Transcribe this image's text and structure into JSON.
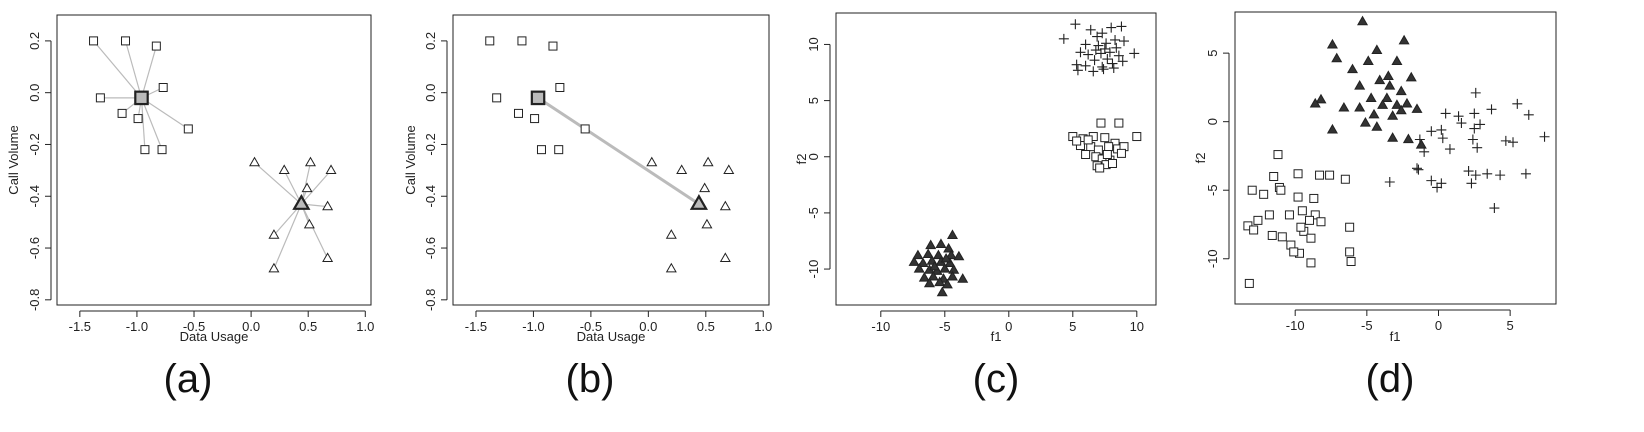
{
  "chart_data": [
    {
      "type": "scatter",
      "panel_label": "(a)",
      "xlabel": "Data Usage",
      "ylabel": "Call Volume",
      "xlim": [
        -1.7,
        1.05
      ],
      "ylim": [
        -0.82,
        0.3
      ],
      "xticks": [
        -1.5,
        -1.0,
        -0.5,
        0.0,
        0.5,
        1.0
      ],
      "xtick_labels": [
        "-1.5",
        "-1.0",
        "-0.5",
        "0.0",
        "0.5",
        "1.0"
      ],
      "yticks": [
        -0.8,
        -0.6,
        -0.4,
        -0.2,
        0.0,
        0.2
      ],
      "ytick_labels": [
        "-0.8",
        "-0.6",
        "-0.4",
        "-0.2",
        "0.0",
        "0.2"
      ],
      "grid": false,
      "series": [
        {
          "marker": "square",
          "points": [
            [
              -1.38,
              0.2
            ],
            [
              -1.1,
              0.2
            ],
            [
              -0.83,
              0.18
            ],
            [
              -1.32,
              -0.02
            ],
            [
              -0.77,
              0.02
            ],
            [
              -1.13,
              -0.08
            ],
            [
              -0.99,
              -0.1
            ],
            [
              -0.55,
              -0.14
            ],
            [
              -0.93,
              -0.22
            ],
            [
              -0.78,
              -0.22
            ]
          ]
        },
        {
          "marker": "triangle",
          "points": [
            [
              0.03,
              -0.27
            ],
            [
              0.29,
              -0.3
            ],
            [
              0.52,
              -0.27
            ],
            [
              0.7,
              -0.3
            ],
            [
              0.49,
              -0.37
            ],
            [
              0.67,
              -0.44
            ],
            [
              0.51,
              -0.51
            ],
            [
              0.2,
              -0.55
            ],
            [
              0.2,
              -0.68
            ],
            [
              0.67,
              -0.64
            ]
          ]
        }
      ],
      "centroids": [
        {
          "marker": "square",
          "x": -0.96,
          "y": -0.02
        },
        {
          "marker": "triangle",
          "x": 0.44,
          "y": -0.43
        }
      ],
      "connectors": "each-point-to-own-centroid"
    },
    {
      "type": "scatter",
      "panel_label": "(b)",
      "xlabel": "Data Usage",
      "ylabel": "Call Volume",
      "xlim": [
        -1.7,
        1.05
      ],
      "ylim": [
        -0.82,
        0.3
      ],
      "xticks": [
        -1.5,
        -1.0,
        -0.5,
        0.0,
        0.5,
        1.0
      ],
      "xtick_labels": [
        "-1.5",
        "-1.0",
        "-0.5",
        "0.0",
        "0.5",
        "1.0"
      ],
      "yticks": [
        -0.8,
        -0.6,
        -0.4,
        -0.2,
        0.0,
        0.2
      ],
      "ytick_labels": [
        "-0.8",
        "-0.6",
        "-0.4",
        "-0.2",
        "0.0",
        "0.2"
      ],
      "grid": false,
      "series": [
        {
          "marker": "square",
          "points": [
            [
              -1.38,
              0.2
            ],
            [
              -1.1,
              0.2
            ],
            [
              -0.83,
              0.18
            ],
            [
              -1.32,
              -0.02
            ],
            [
              -0.77,
              0.02
            ],
            [
              -1.13,
              -0.08
            ],
            [
              -0.99,
              -0.1
            ],
            [
              -0.55,
              -0.14
            ],
            [
              -0.93,
              -0.22
            ],
            [
              -0.78,
              -0.22
            ]
          ]
        },
        {
          "marker": "triangle",
          "points": [
            [
              0.03,
              -0.27
            ],
            [
              0.29,
              -0.3
            ],
            [
              0.52,
              -0.27
            ],
            [
              0.7,
              -0.3
            ],
            [
              0.49,
              -0.37
            ],
            [
              0.67,
              -0.44
            ],
            [
              0.51,
              -0.51
            ],
            [
              0.2,
              -0.55
            ],
            [
              0.2,
              -0.68
            ],
            [
              0.67,
              -0.64
            ]
          ]
        }
      ],
      "centroids": [
        {
          "marker": "square",
          "x": -0.96,
          "y": -0.02
        },
        {
          "marker": "triangle",
          "x": 0.44,
          "y": -0.43
        }
      ],
      "connectors": "centroid-to-centroid"
    },
    {
      "type": "scatter",
      "panel_label": "(c)",
      "xlabel": "f1",
      "ylabel": "f2",
      "xlim": [
        -13.5,
        11.5
      ],
      "ylim": [
        -13.2,
        12.8
      ],
      "xticks": [
        -10,
        -5,
        0,
        5,
        10
      ],
      "xtick_labels": [
        "-10",
        "-5",
        "0",
        "5",
        "10"
      ],
      "yticks": [
        -10,
        -5,
        0,
        5,
        10
      ],
      "ytick_labels": [
        "-10",
        "-5",
        "0",
        "5",
        "10"
      ],
      "grid": false,
      "series": [
        {
          "marker": "plus",
          "points": [
            [
              4.3,
              10.5
            ],
            [
              5.2,
              11.8
            ],
            [
              6.4,
              11.3
            ],
            [
              7.3,
              11.0
            ],
            [
              8.0,
              11.5
            ],
            [
              8.8,
              11.6
            ],
            [
              6.0,
              10.0
            ],
            [
              7.0,
              9.9
            ],
            [
              7.6,
              10.1
            ],
            [
              8.3,
              10.4
            ],
            [
              9.0,
              10.3
            ],
            [
              5.6,
              9.3
            ],
            [
              6.2,
              9.1
            ],
            [
              6.8,
              9.5
            ],
            [
              7.2,
              9.2
            ],
            [
              7.9,
              9.3
            ],
            [
              8.6,
              9.0
            ],
            [
              9.8,
              9.2
            ],
            [
              5.3,
              8.2
            ],
            [
              6.0,
              8.1
            ],
            [
              6.7,
              8.6
            ],
            [
              7.3,
              8.0
            ],
            [
              8.1,
              8.3
            ],
            [
              8.9,
              8.5
            ],
            [
              5.4,
              7.7
            ],
            [
              6.6,
              7.6
            ],
            [
              7.4,
              7.8
            ],
            [
              8.2,
              7.9
            ],
            [
              6.9,
              10.7
            ],
            [
              7.7,
              8.7
            ],
            [
              8.4,
              9.7
            ],
            [
              7.5,
              9.6
            ]
          ]
        },
        {
          "marker": "square",
          "points": [
            [
              7.2,
              3.0
            ],
            [
              8.6,
              3.0
            ],
            [
              5.0,
              1.8
            ],
            [
              5.8,
              1.6
            ],
            [
              6.6,
              1.8
            ],
            [
              7.5,
              1.7
            ],
            [
              8.3,
              1.2
            ],
            [
              10.0,
              1.8
            ],
            [
              5.6,
              1.0
            ],
            [
              6.4,
              0.9
            ],
            [
              7.0,
              0.6
            ],
            [
              7.8,
              0.9
            ],
            [
              8.5,
              0.7
            ],
            [
              9.0,
              0.9
            ],
            [
              6.0,
              0.2
            ],
            [
              6.8,
              0.0
            ],
            [
              7.3,
              -0.2
            ],
            [
              7.9,
              -0.3
            ],
            [
              8.8,
              0.3
            ],
            [
              6.9,
              -0.8
            ],
            [
              7.6,
              -0.7
            ],
            [
              8.1,
              -0.6
            ],
            [
              7.1,
              -1.0
            ],
            [
              5.3,
              1.4
            ],
            [
              6.2,
              1.5
            ],
            [
              7.7,
              0.2
            ]
          ]
        },
        {
          "marker": "filled-triangle",
          "points": [
            [
              -4.4,
              -7.0
            ],
            [
              -5.3,
              -7.8
            ],
            [
              -6.1,
              -7.9
            ],
            [
              -4.7,
              -8.2
            ],
            [
              -7.1,
              -8.8
            ],
            [
              -6.3,
              -8.7
            ],
            [
              -5.5,
              -8.8
            ],
            [
              -4.5,
              -8.8
            ],
            [
              -3.9,
              -8.9
            ],
            [
              -7.4,
              -9.4
            ],
            [
              -6.7,
              -9.5
            ],
            [
              -6.0,
              -9.3
            ],
            [
              -5.3,
              -9.4
            ],
            [
              -4.6,
              -9.5
            ],
            [
              -7.0,
              -10.0
            ],
            [
              -6.2,
              -10.1
            ],
            [
              -5.6,
              -10.2
            ],
            [
              -5.0,
              -10.0
            ],
            [
              -4.3,
              -10.1
            ],
            [
              -6.6,
              -10.8
            ],
            [
              -5.9,
              -10.7
            ],
            [
              -5.1,
              -10.9
            ],
            [
              -4.4,
              -10.7
            ],
            [
              -3.6,
              -10.9
            ],
            [
              -6.2,
              -11.3
            ],
            [
              -5.4,
              -11.2
            ],
            [
              -4.8,
              -11.4
            ],
            [
              -5.2,
              -12.1
            ],
            [
              -5.8,
              -9.8
            ],
            [
              -4.9,
              -9.1
            ]
          ]
        }
      ]
    },
    {
      "type": "scatter",
      "panel_label": "(d)",
      "xlabel": "f1",
      "ylabel": "f2",
      "xlim": [
        -14.2,
        8.2
      ],
      "ylim": [
        -13.3,
        8.0
      ],
      "xticks": [
        -10,
        -5,
        0,
        5
      ],
      "xtick_labels": [
        "-10",
        "-5",
        "0",
        "5"
      ],
      "yticks": [
        -10,
        -5,
        0,
        5
      ],
      "ytick_labels": [
        "-10",
        "-5",
        "0",
        "5"
      ],
      "grid": false,
      "series": [
        {
          "marker": "filled-triangle",
          "points": [
            [
              -5.3,
              7.3
            ],
            [
              -7.4,
              5.6
            ],
            [
              -4.3,
              5.2
            ],
            [
              -2.4,
              5.9
            ],
            [
              -7.1,
              4.6
            ],
            [
              -4.9,
              4.4
            ],
            [
              -2.9,
              4.4
            ],
            [
              -6.0,
              3.8
            ],
            [
              -4.1,
              3.0
            ],
            [
              -3.5,
              3.3
            ],
            [
              -1.9,
              3.2
            ],
            [
              -5.5,
              2.6
            ],
            [
              -3.4,
              2.6
            ],
            [
              -2.6,
              2.2
            ],
            [
              -8.2,
              1.6
            ],
            [
              -4.7,
              1.7
            ],
            [
              -3.6,
              1.7
            ],
            [
              -6.6,
              1.0
            ],
            [
              -5.5,
              1.0
            ],
            [
              -3.9,
              1.2
            ],
            [
              -2.9,
              1.2
            ],
            [
              -2.2,
              1.3
            ],
            [
              -8.6,
              1.3
            ],
            [
              -4.5,
              0.5
            ],
            [
              -3.2,
              0.4
            ],
            [
              -2.6,
              0.8
            ],
            [
              -1.5,
              0.9
            ],
            [
              -5.1,
              -0.1
            ],
            [
              -7.4,
              -0.6
            ],
            [
              -3.2,
              -1.2
            ],
            [
              -2.1,
              -1.3
            ],
            [
              -1.2,
              -1.7
            ],
            [
              -4.3,
              -0.4
            ]
          ]
        },
        {
          "marker": "plus",
          "points": [
            [
              2.6,
              2.1
            ],
            [
              5.5,
              1.3
            ],
            [
              0.5,
              0.6
            ],
            [
              1.4,
              0.4
            ],
            [
              2.5,
              0.6
            ],
            [
              3.7,
              0.9
            ],
            [
              6.3,
              0.5
            ],
            [
              -0.5,
              -0.7
            ],
            [
              0.2,
              -0.6
            ],
            [
              1.6,
              -0.1
            ],
            [
              2.5,
              -0.5
            ],
            [
              2.9,
              -0.2
            ],
            [
              7.4,
              -1.1
            ],
            [
              -1.3,
              -1.3
            ],
            [
              0.3,
              -1.2
            ],
            [
              2.4,
              -1.3
            ],
            [
              4.7,
              -1.4
            ],
            [
              5.2,
              -1.5
            ],
            [
              -1.0,
              -2.2
            ],
            [
              0.8,
              -2.0
            ],
            [
              2.7,
              -1.9
            ],
            [
              -1.5,
              -3.4
            ],
            [
              2.1,
              -3.6
            ],
            [
              2.6,
              -3.9
            ],
            [
              3.4,
              -3.8
            ],
            [
              4.3,
              -3.9
            ],
            [
              6.1,
              -3.8
            ],
            [
              -3.4,
              -4.4
            ],
            [
              -0.5,
              -4.3
            ],
            [
              0.2,
              -4.5
            ],
            [
              2.3,
              -4.5
            ],
            [
              -0.1,
              -4.8
            ],
            [
              3.9,
              -6.3
            ],
            [
              -1.4,
              -3.5
            ]
          ]
        },
        {
          "marker": "square",
          "points": [
            [
              -11.2,
              -2.4
            ],
            [
              -11.5,
              -4.0
            ],
            [
              -11.1,
              -4.8
            ],
            [
              -9.8,
              -3.8
            ],
            [
              -8.3,
              -3.9
            ],
            [
              -7.6,
              -3.9
            ],
            [
              -6.5,
              -4.2
            ],
            [
              -13.0,
              -5.0
            ],
            [
              -12.2,
              -5.3
            ],
            [
              -11.0,
              -5.0
            ],
            [
              -9.8,
              -5.5
            ],
            [
              -8.7,
              -5.6
            ],
            [
              -13.3,
              -7.6
            ],
            [
              -12.6,
              -7.2
            ],
            [
              -11.8,
              -6.8
            ],
            [
              -10.4,
              -6.8
            ],
            [
              -9.5,
              -6.5
            ],
            [
              -8.6,
              -6.8
            ],
            [
              -9.0,
              -7.2
            ],
            [
              -8.2,
              -7.3
            ],
            [
              -12.9,
              -7.9
            ],
            [
              -10.9,
              -8.4
            ],
            [
              -9.4,
              -8.0
            ],
            [
              -8.9,
              -8.5
            ],
            [
              -6.2,
              -7.7
            ],
            [
              -10.3,
              -9.0
            ],
            [
              -9.7,
              -9.6
            ],
            [
              -10.1,
              -9.5
            ],
            [
              -6.2,
              -9.5
            ],
            [
              -8.9,
              -10.3
            ],
            [
              -6.1,
              -10.2
            ],
            [
              -13.2,
              -11.8
            ],
            [
              -9.6,
              -7.7
            ],
            [
              -11.6,
              -8.3
            ]
          ]
        }
      ]
    }
  ]
}
